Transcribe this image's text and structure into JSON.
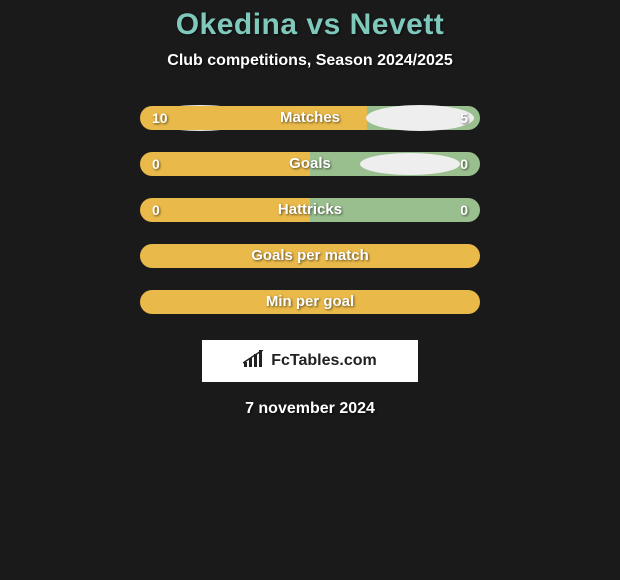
{
  "title": "Okedina vs Nevett",
  "subtitle": "Club competitions, Season 2024/2025",
  "background_color": "#1a1a1a",
  "title_color": "#7ec9bc",
  "text_color": "#ffffff",
  "rows": [
    {
      "label": "Matches",
      "left_value": "10",
      "right_value": "5",
      "left_ratio": 0.6667,
      "right_ratio": 0.3333,
      "left_color": "#e9b949",
      "right_color": "#9abf8e",
      "show_ellipses": true,
      "ellipse_size": "large"
    },
    {
      "label": "Goals",
      "left_value": "0",
      "right_value": "0",
      "left_ratio": 0.5,
      "right_ratio": 0.5,
      "left_color": "#e9b949",
      "right_color": "#9abf8e",
      "show_ellipses": true,
      "ellipse_size": "small"
    },
    {
      "label": "Hattricks",
      "left_value": "0",
      "right_value": "0",
      "left_ratio": 0.5,
      "right_ratio": 0.5,
      "left_color": "#e9b949",
      "right_color": "#9abf8e",
      "show_ellipses": false
    }
  ],
  "empty_rows": [
    {
      "label": "Goals per match",
      "bar_color": "#e9b949"
    },
    {
      "label": "Min per goal",
      "bar_color": "#e9b949"
    }
  ],
  "badge": {
    "icon": "〽",
    "text": "FcTables.com",
    "bg_color": "#ffffff",
    "text_color": "#222222"
  },
  "date": "7 november 2024",
  "ellipse_color": "#eeeeee"
}
